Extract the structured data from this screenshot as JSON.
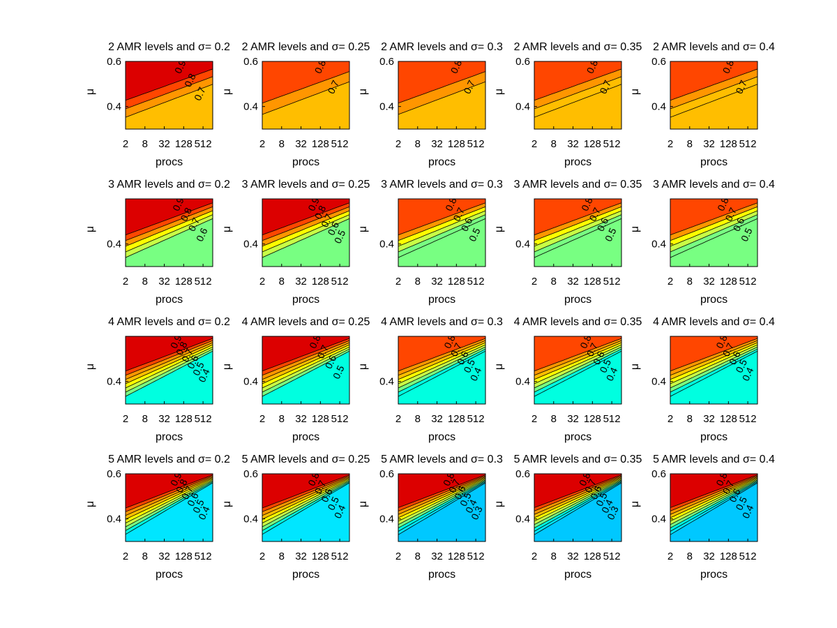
{
  "figure": {
    "rows": [
      {
        "amr_levels": 2,
        "titles": [
          "2 AMR levels and σ= 0.2",
          "2 AMR levels and σ= 0.25",
          "2 AMR levels and σ= 0.3",
          "2 AMR levels and σ= 0.35",
          "2 AMR levels and σ= 0.4"
        ],
        "band_color_index": [
          [
            0,
            1,
            2,
            3
          ],
          [
            1,
            2,
            3
          ],
          [
            1,
            2,
            3
          ],
          [
            1,
            2,
            3,
            3
          ],
          [
            1,
            2,
            3,
            3
          ]
        ],
        "contour_labels": [
          [
            "0.9",
            "0.8",
            "0.7"
          ],
          [
            "0.8",
            "0.7"
          ],
          [
            "0.8",
            "0.7"
          ],
          [
            "0.8",
            "0.7"
          ],
          [
            "0.8",
            "0.7"
          ]
        ]
      },
      {
        "amr_levels": 3,
        "titles": [
          "3 AMR levels and σ= 0.2",
          "3 AMR levels and σ= 0.25",
          "3 AMR levels and σ= 0.3",
          "3 AMR levels and σ= 0.35",
          "3 AMR levels and σ= 0.4"
        ],
        "band_color_index": [
          [
            0,
            1,
            2,
            4,
            5,
            6
          ],
          [
            0,
            1,
            2,
            4,
            5,
            6
          ],
          [
            1,
            2,
            4,
            5,
            6,
            6
          ],
          [
            1,
            2,
            4,
            5,
            6,
            6
          ],
          [
            1,
            2,
            4,
            5,
            6,
            6
          ]
        ],
        "contour_labels": [
          [
            "0.9",
            "0.8",
            "0.7",
            "0.6"
          ],
          [
            "0.9",
            "0.8",
            "0.7",
            "0.6",
            "0.5"
          ],
          [
            "0.8",
            "0.7",
            "0.6",
            "0.5"
          ],
          [
            "0.8",
            "0.7",
            "0.6",
            "0.5"
          ],
          [
            "0.8",
            "0.7",
            "0.6",
            "0.5"
          ]
        ]
      },
      {
        "amr_levels": 4,
        "titles": [
          "4 AMR levels and σ= 0.2",
          "4 AMR levels and σ= 0.25",
          "4 AMR levels and σ= 0.3",
          "4 AMR levels and σ= 0.35",
          "4 AMR levels and σ= 0.4"
        ],
        "band_color_index": [
          [
            0,
            1,
            2,
            3,
            4,
            5,
            6,
            7
          ],
          [
            0,
            1,
            2,
            3,
            4,
            5,
            6,
            7
          ],
          [
            1,
            2,
            3,
            4,
            5,
            6,
            7,
            7
          ],
          [
            1,
            2,
            3,
            4,
            5,
            6,
            7,
            7
          ],
          [
            1,
            2,
            3,
            4,
            5,
            6,
            7,
            7
          ]
        ],
        "contour_labels": [
          [
            "0.9",
            "0.8",
            "0.7",
            "0.6",
            "0.5",
            "0.4"
          ],
          [
            "0.8",
            "0.7",
            "0.6",
            "0.5"
          ],
          [
            "0.8",
            "0.7",
            "0.6",
            "0.5",
            "0.4"
          ],
          [
            "0.8",
            "0.7",
            "0.6",
            "0.5",
            "0.4"
          ],
          [
            "0.8",
            "0.7",
            "0.6",
            "0.5",
            "0.4"
          ]
        ]
      },
      {
        "amr_levels": 5,
        "titles": [
          "5 AMR levels and σ= 0.2",
          "5 AMR levels and σ= 0.25",
          "5 AMR levels and σ= 0.3",
          "5 AMR levels and σ= 0.35",
          "5 AMR levels and σ= 0.4"
        ],
        "band_color_index": [
          [
            0,
            1,
            2,
            3,
            4,
            5,
            6,
            7,
            8
          ],
          [
            0,
            1,
            2,
            3,
            4,
            5,
            6,
            7,
            8
          ],
          [
            0,
            1,
            2,
            3,
            4,
            5,
            6,
            7,
            8,
            9
          ],
          [
            0,
            1,
            2,
            3,
            4,
            5,
            6,
            7,
            8,
            9
          ],
          [
            0,
            1,
            2,
            3,
            4,
            5,
            6,
            7,
            8,
            9
          ]
        ],
        "contour_labels": [
          [
            "0.9",
            "0.8",
            "0.7",
            "0.6",
            "0.5",
            "0.4"
          ],
          [
            "0.8",
            "0.7",
            "0.6",
            "0.5",
            "0.4"
          ],
          [
            "0.8",
            "0.7",
            "0.6",
            "0.5",
            "0.4",
            "0.3"
          ],
          [
            "0.8",
            "0.7",
            "0.6",
            "0.5",
            "0.4",
            "0.3"
          ],
          [
            "0.8",
            "0.7",
            "0.6",
            "0.5",
            "0.4"
          ]
        ]
      }
    ],
    "palette": [
      "#dc0000",
      "#ff4600",
      "#ff9600",
      "#ffbe00",
      "#ffff00",
      "#c8ff46",
      "#78ff82",
      "#00ffe0",
      "#00e6ff",
      "#00c8ff"
    ]
  },
  "chart_data": {
    "type": "contour",
    "layout": "4x5 grid of contour plots",
    "xlabel": "procs",
    "ylabel": "μ",
    "x_scale": "log2",
    "x_ticks": [
      "2",
      "8",
      "32",
      "128",
      "512"
    ],
    "xlim": [
      2,
      1024
    ],
    "y_ticks": [
      "0.4",
      "0.6"
    ],
    "y_ticks_rows": [
      [
        "0.4",
        "0.6"
      ],
      [
        "0.4"
      ],
      [
        "0.4"
      ],
      [
        "0.4",
        "0.6"
      ]
    ],
    "ylim": [
      0.3,
      0.6
    ],
    "contour_levels": [
      0.3,
      0.4,
      0.5,
      0.6,
      0.7,
      0.8,
      0.9
    ],
    "colormap": "jet"
  }
}
